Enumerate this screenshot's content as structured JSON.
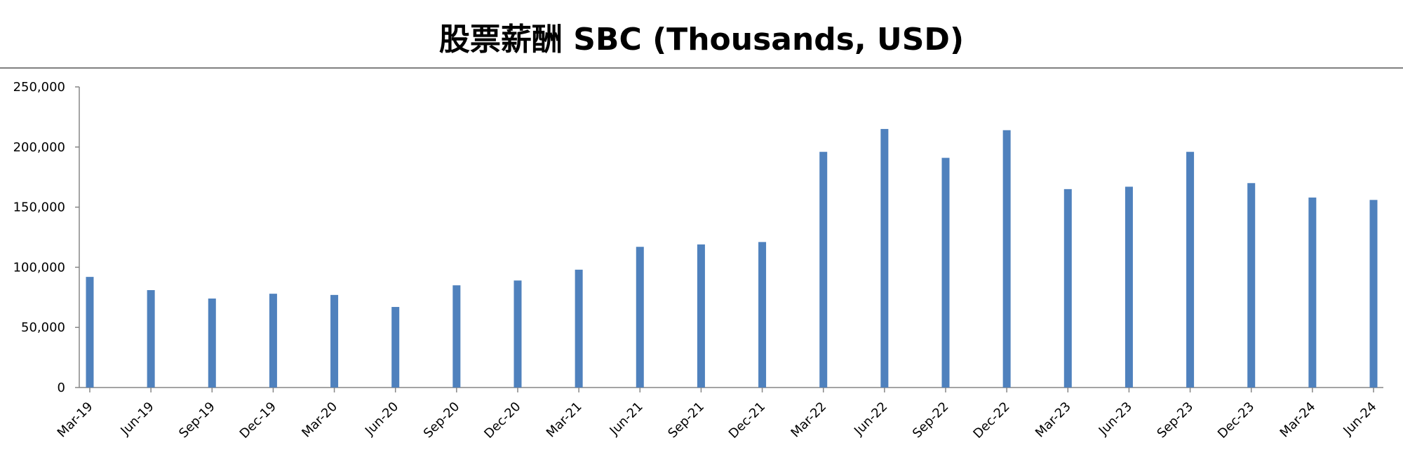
{
  "chart_data": {
    "type": "bar",
    "title": "股票薪酬 SBC (Thousands, USD)",
    "xlabel": "",
    "ylabel": "",
    "ylim": [
      0,
      250000
    ],
    "yticks": [
      "0",
      "50,000",
      "100,000",
      "150,000",
      "200,000",
      "250,000"
    ],
    "ytick_values": [
      0,
      50000,
      100000,
      150000,
      200000,
      250000
    ],
    "grid": false,
    "legend": "none",
    "bar_color": "#4F81BD",
    "categories": [
      "Mar-19",
      "Jun-19",
      "Sep-19",
      "Dec-19",
      "Mar-20",
      "Jun-20",
      "Sep-20",
      "Dec-20",
      "Mar-21",
      "Jun-21",
      "Sep-21",
      "Dec-21",
      "Mar-22",
      "Jun-22",
      "Sep-22",
      "Dec-22",
      "Mar-23",
      "Jun-23",
      "Sep-23",
      "Dec-23",
      "Mar-24",
      "Jun-24"
    ],
    "values": [
      92000,
      81000,
      74000,
      78000,
      77000,
      67000,
      85000,
      89000,
      98000,
      117000,
      119000,
      121000,
      196000,
      215000,
      191000,
      214000,
      165000,
      167000,
      196000,
      170000,
      158000,
      156000
    ]
  }
}
